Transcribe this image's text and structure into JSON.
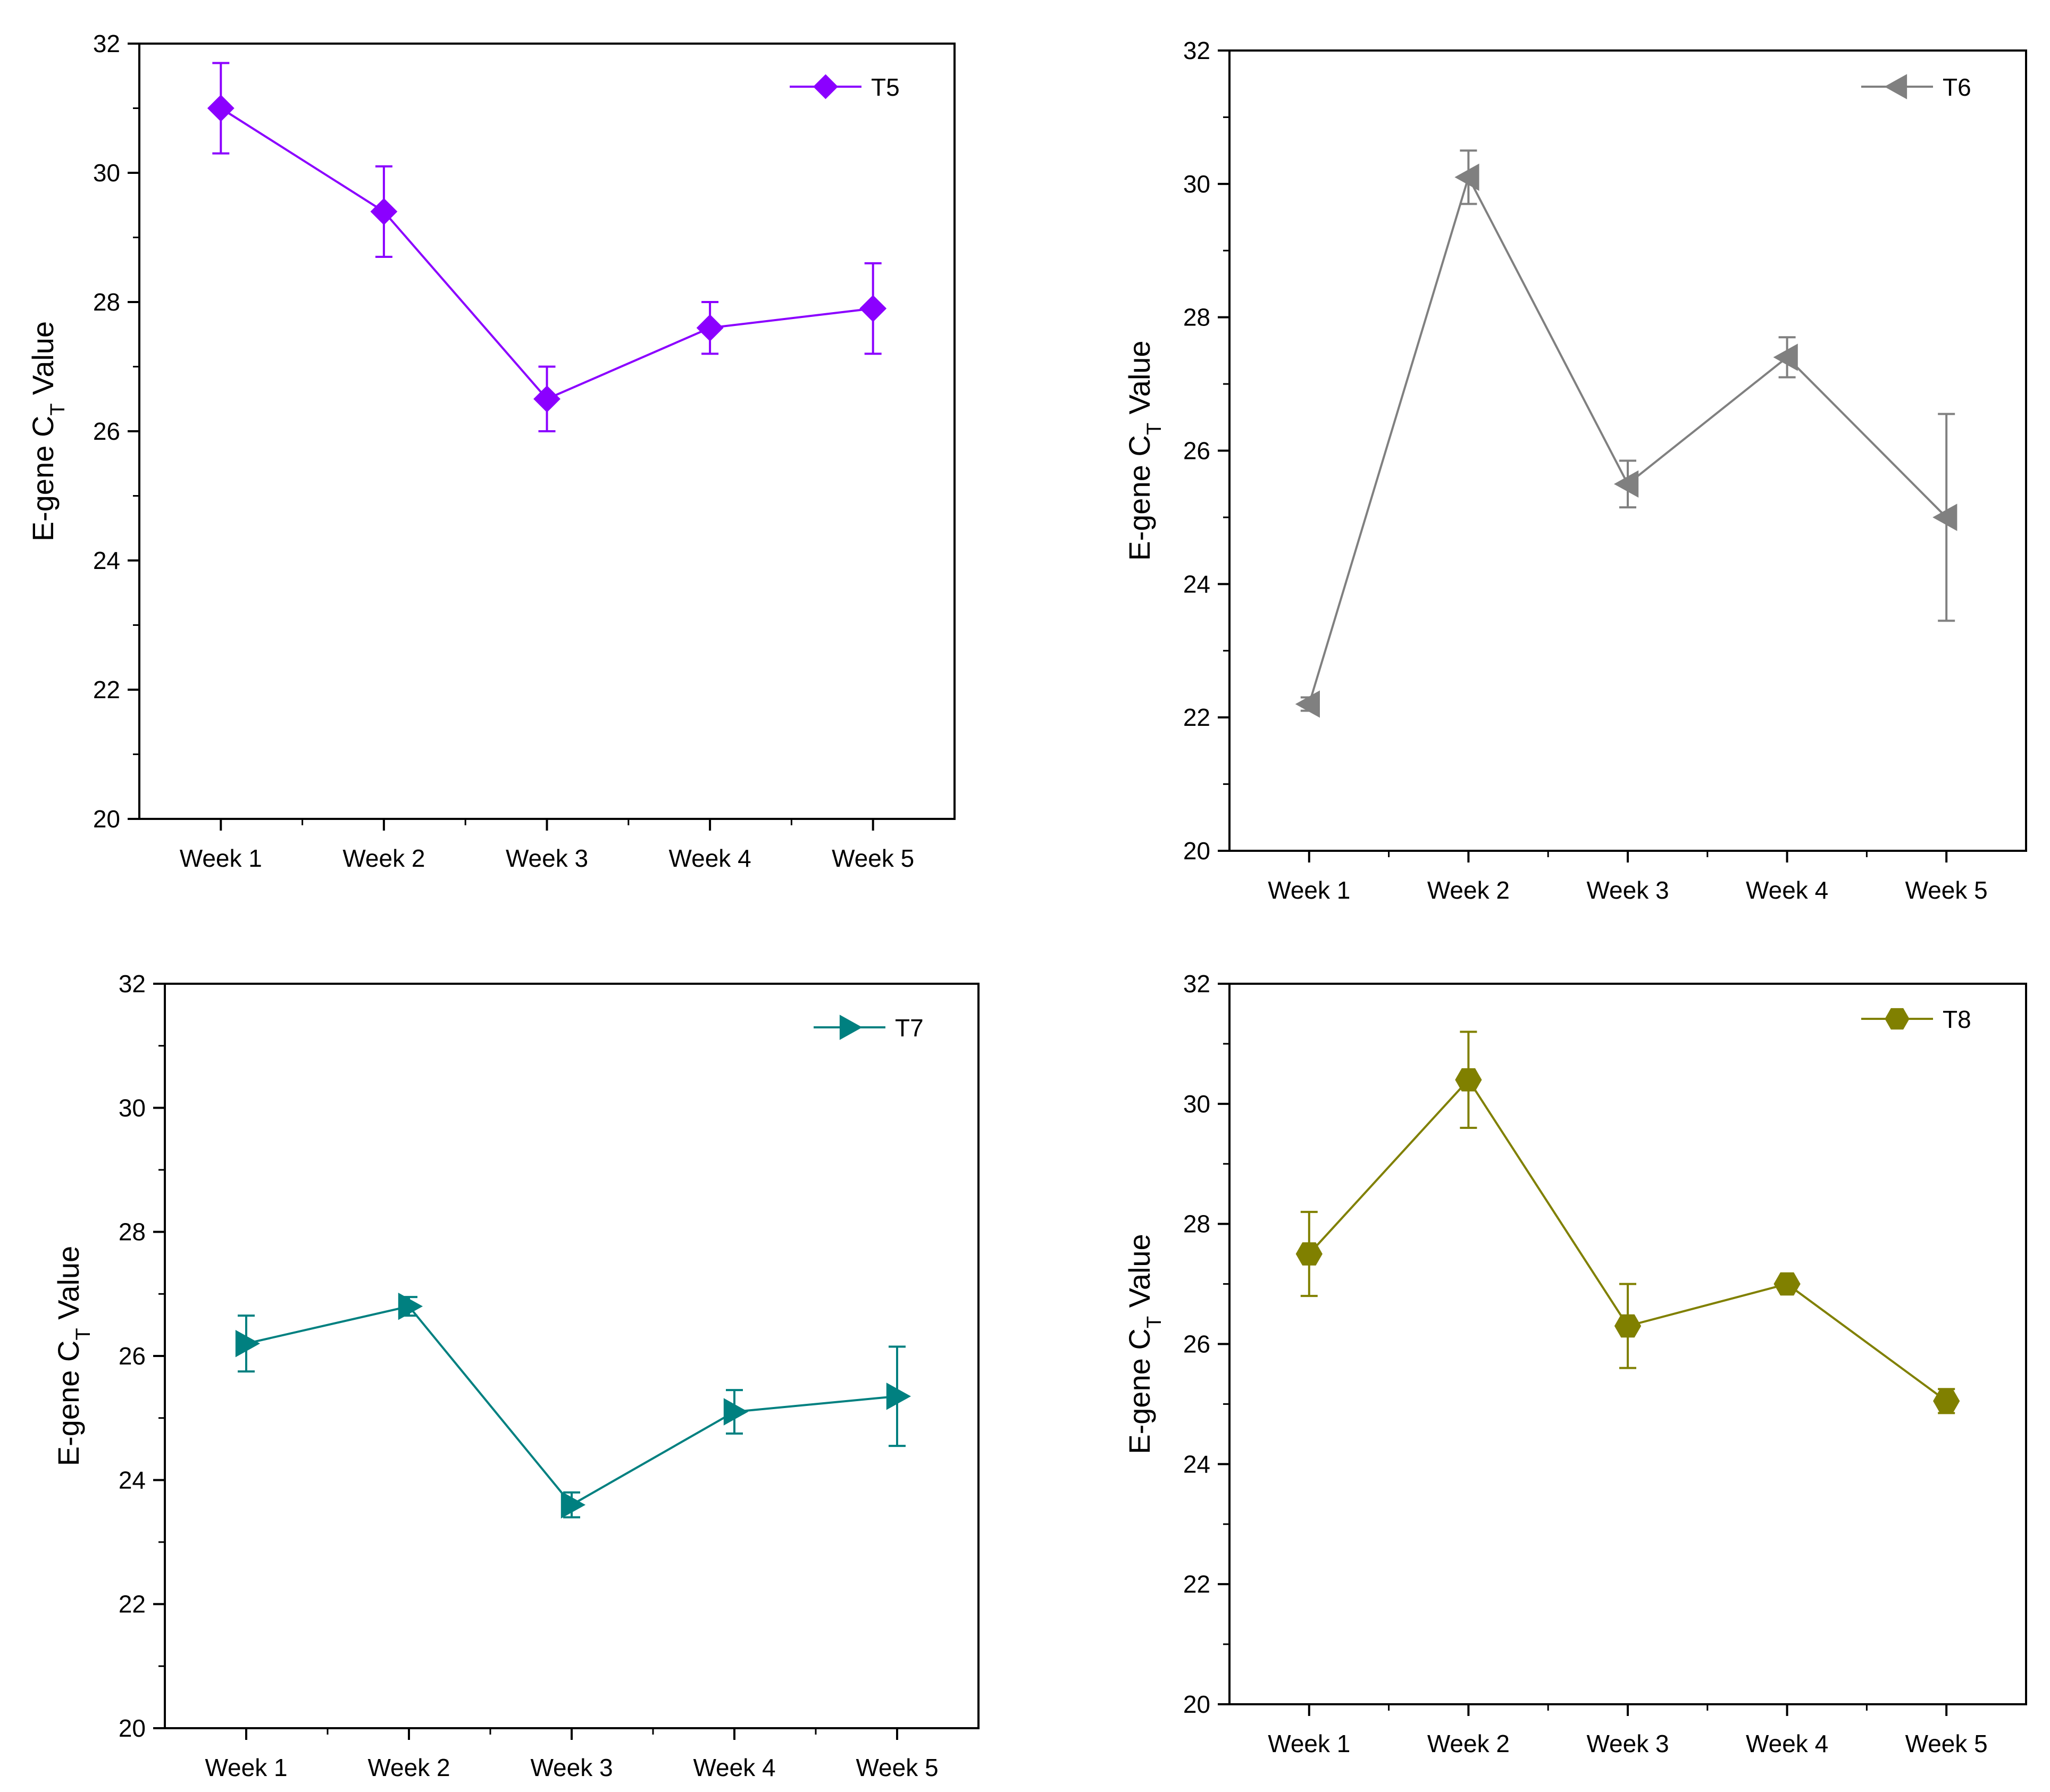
{
  "chart_data": [
    {
      "type": "line",
      "panel": "top-left",
      "categories": [
        "Week 1",
        "Week 2",
        "Week 3",
        "Week 4",
        "Week 5"
      ],
      "series": [
        {
          "name": "T5",
          "values": [
            31.0,
            29.4,
            26.5,
            27.6,
            27.9
          ],
          "error": [
            0.7,
            0.7,
            0.5,
            0.4,
            0.7
          ],
          "marker": "diamond"
        }
      ],
      "ylabel": {
        "prefix": "E-gene C",
        "sub": "T",
        "suffix": " Value"
      },
      "ylim": [
        20,
        32
      ],
      "yticks": [
        "20",
        "22",
        "24",
        "26",
        "28",
        "30",
        "32"
      ],
      "legend_position": "top-right",
      "color": "#8b00ff"
    },
    {
      "type": "line",
      "panel": "top-right",
      "categories": [
        "Week 1",
        "Week 2",
        "Week 3",
        "Week 4",
        "Week 5"
      ],
      "series": [
        {
          "name": "T6",
          "values": [
            22.2,
            30.1,
            25.5,
            27.4,
            25.0
          ],
          "error": [
            0.1,
            0.4,
            0.35,
            0.3,
            1.55
          ],
          "marker": "triangle-left"
        }
      ],
      "ylabel": {
        "prefix": "E-gene C",
        "sub": "T",
        "suffix": " Value"
      },
      "ylim": [
        20,
        32
      ],
      "yticks": [
        "20",
        "22",
        "24",
        "26",
        "28",
        "30",
        "32"
      ],
      "legend_position": "top-right",
      "color": "#808080"
    },
    {
      "type": "line",
      "panel": "bottom-left",
      "categories": [
        "Week 1",
        "Week 2",
        "Week 3",
        "Week 4",
        "Week 5"
      ],
      "series": [
        {
          "name": "T7",
          "values": [
            26.2,
            26.8,
            23.6,
            25.1,
            25.35
          ],
          "error": [
            0.45,
            0.15,
            0.2,
            0.35,
            0.8
          ],
          "marker": "triangle-right"
        }
      ],
      "ylabel": {
        "prefix": "E-gene C",
        "sub": "T",
        "suffix": " Value"
      },
      "ylim": [
        20,
        32
      ],
      "yticks": [
        "20",
        "22",
        "24",
        "26",
        "28",
        "30",
        "32"
      ],
      "legend_position": "top-right",
      "color": "#008080"
    },
    {
      "type": "line",
      "panel": "bottom-right",
      "categories": [
        "Week 1",
        "Week 2",
        "Week 3",
        "Week 4",
        "Week 5"
      ],
      "series": [
        {
          "name": "T8",
          "values": [
            27.5,
            30.4,
            26.3,
            27.0,
            25.05
          ],
          "error": [
            0.7,
            0.8,
            0.7,
            0.1,
            0.2
          ],
          "marker": "hexagon"
        }
      ],
      "ylabel": {
        "prefix": "E-gene C",
        "sub": "T",
        "suffix": " Value"
      },
      "ylim": [
        20,
        32
      ],
      "yticks": [
        "20",
        "22",
        "24",
        "26",
        "28",
        "30",
        "32"
      ],
      "legend_position": "top-right",
      "color": "#808000"
    }
  ]
}
